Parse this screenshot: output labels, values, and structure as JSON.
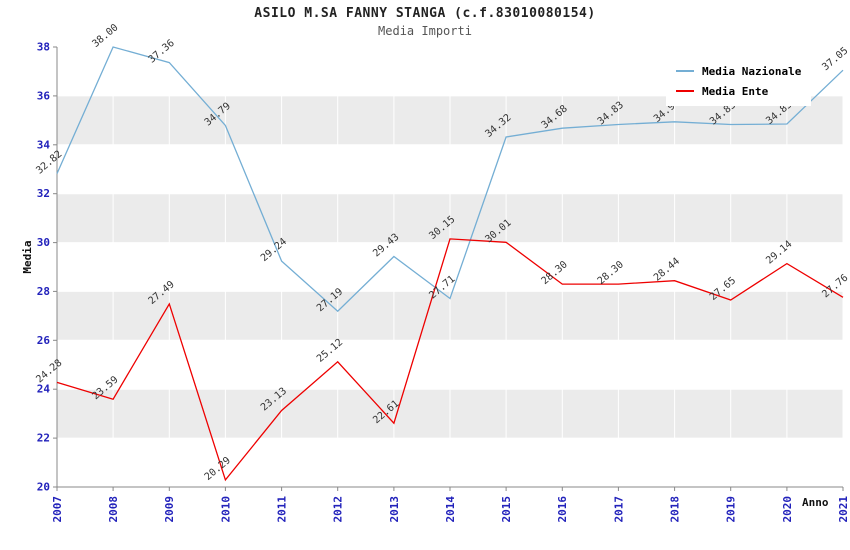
{
  "title": "ASILO M.SA FANNY STANGA (c.f.83010080154)",
  "subtitle": "Media Importi",
  "chart_data": {
    "type": "line",
    "x": [
      "2007",
      "2008",
      "2009",
      "2010",
      "2011",
      "2012",
      "2013",
      "2014",
      "2015",
      "2016",
      "2017",
      "2018",
      "2019",
      "2020",
      "2021"
    ],
    "series": [
      {
        "name": "Media Nazionale",
        "color": "#74aed4",
        "values": [
          32.82,
          38.0,
          37.36,
          34.79,
          29.24,
          27.19,
          29.43,
          27.71,
          34.32,
          34.68,
          34.83,
          34.94,
          34.83,
          34.85,
          37.05
        ]
      },
      {
        "name": "Media Ente",
        "color": "#ee0000",
        "values": [
          24.28,
          23.59,
          27.49,
          20.29,
          23.13,
          25.12,
          22.61,
          30.15,
          30.01,
          28.3,
          28.3,
          28.44,
          27.65,
          29.14,
          27.76
        ]
      }
    ],
    "xlabel": "Anno",
    "ylabel": "Media",
    "ylim": [
      20,
      38
    ],
    "ytick_step": 2,
    "grid": true,
    "legend_position": "top-right",
    "colors": {
      "band": "#ebebeb",
      "axis": "#888888",
      "tick_label": "#2222bb",
      "point_label": "#333333"
    }
  }
}
